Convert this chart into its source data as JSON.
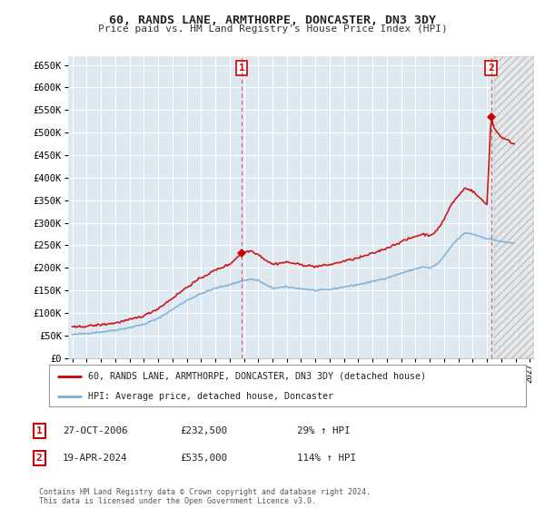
{
  "title": "60, RANDS LANE, ARMTHORPE, DONCASTER, DN3 3DY",
  "subtitle": "Price paid vs. HM Land Registry's House Price Index (HPI)",
  "legend_line1": "60, RANDS LANE, ARMTHORPE, DONCASTER, DN3 3DY (detached house)",
  "legend_line2": "HPI: Average price, detached house, Doncaster",
  "annotation1_label": "1",
  "annotation1_date": "27-OCT-2006",
  "annotation1_price": "£232,500",
  "annotation1_hpi": "29% ↑ HPI",
  "annotation2_label": "2",
  "annotation2_date": "19-APR-2024",
  "annotation2_price": "£535,000",
  "annotation2_hpi": "114% ↑ HPI",
  "footer": "Contains HM Land Registry data © Crown copyright and database right 2024.\nThis data is licensed under the Open Government Licence v3.0.",
  "hpi_color": "#7bafd4",
  "price_color": "#cc0000",
  "background_color": "#ffffff",
  "chart_bg_color": "#dde8f0",
  "grid_color": "#ffffff",
  "ylim": [
    0,
    670000
  ],
  "yticks": [
    0,
    50000,
    100000,
    150000,
    200000,
    250000,
    300000,
    350000,
    400000,
    450000,
    500000,
    550000,
    600000,
    650000
  ],
  "ytick_labels": [
    "£0",
    "£50K",
    "£100K",
    "£150K",
    "£200K",
    "£250K",
    "£300K",
    "£350K",
    "£400K",
    "£450K",
    "£500K",
    "£550K",
    "£600K",
    "£650K"
  ],
  "sale1_x": 2006.83,
  "sale1_y": 232500,
  "sale2_x": 2024.29,
  "sale2_y": 535000,
  "xmin": 1994.7,
  "xmax": 2027.3,
  "xtick_years": [
    1995,
    1996,
    1997,
    1998,
    1999,
    2000,
    2001,
    2002,
    2003,
    2004,
    2005,
    2006,
    2007,
    2008,
    2009,
    2010,
    2011,
    2012,
    2013,
    2014,
    2015,
    2016,
    2017,
    2018,
    2019,
    2020,
    2021,
    2022,
    2023,
    2024,
    2025,
    2026,
    2027
  ],
  "hatch_start": 2024.5,
  "hatch_color": "#b0b0b0"
}
